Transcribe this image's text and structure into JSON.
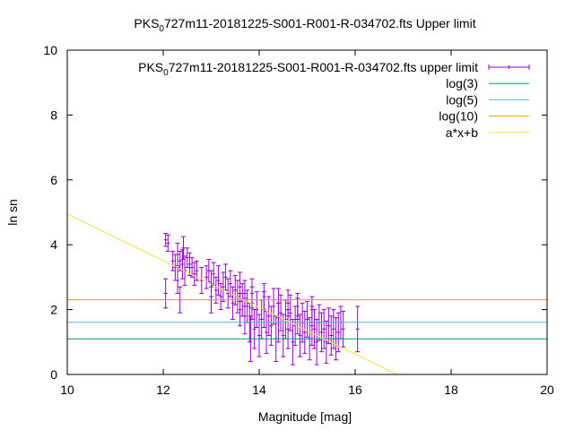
{
  "chart_data": {
    "type": "scatter",
    "title_parts": {
      "pre": "PKS",
      "sub": "0",
      "post": "727m11-20181225-S001-R001-R-034702.fts Upper limit"
    },
    "xlabel": "Magnitude [mag]",
    "ylabel": "ln sn",
    "xlim": [
      10,
      20
    ],
    "ylim": [
      0,
      10
    ],
    "xticks": [
      10,
      12,
      14,
      16,
      18,
      20
    ],
    "yticks": [
      0,
      2,
      4,
      6,
      8,
      10
    ],
    "grid": false,
    "legend_position": "top-right",
    "series": [
      {
        "kind": "errorbars",
        "name_parts": {
          "pre": "PKS",
          "sub": "0",
          "post": "727m11-20181225-S001-R001-R-034702.fts upper limit"
        },
        "color": "#9400d3",
        "points": [
          [
            12.05,
            4.15,
            0.2
          ],
          [
            12.1,
            4.05,
            0.25
          ],
          [
            12.05,
            2.5,
            0.45
          ],
          [
            12.2,
            3.5,
            0.3
          ],
          [
            12.25,
            3.3,
            0.4
          ],
          [
            12.3,
            3.7,
            0.35
          ],
          [
            12.35,
            3.5,
            0.3
          ],
          [
            12.4,
            3.4,
            0.45
          ],
          [
            12.42,
            3.9,
            0.35
          ],
          [
            12.45,
            3.2,
            0.45
          ],
          [
            12.5,
            3.6,
            0.3
          ],
          [
            12.55,
            3.4,
            0.35
          ],
          [
            12.6,
            3.3,
            0.3
          ],
          [
            12.65,
            3.1,
            0.35
          ],
          [
            12.7,
            3.2,
            0.3
          ],
          [
            12.35,
            2.3,
            0.4
          ],
          [
            12.3,
            2.9,
            0.4
          ],
          [
            12.8,
            2.9,
            0.4
          ],
          [
            12.9,
            3.0,
            0.35
          ],
          [
            13.0,
            2.8,
            0.4
          ],
          [
            13.05,
            3.1,
            0.35
          ],
          [
            13.1,
            2.6,
            0.4
          ],
          [
            13.15,
            2.9,
            0.45
          ],
          [
            13.2,
            2.4,
            0.4
          ],
          [
            13.25,
            2.7,
            0.45
          ],
          [
            13.3,
            3.0,
            0.4
          ],
          [
            13.35,
            2.5,
            0.45
          ],
          [
            13.4,
            2.8,
            0.4
          ],
          [
            13.45,
            2.2,
            0.5
          ],
          [
            13.5,
            2.6,
            0.45
          ],
          [
            13.55,
            2.4,
            0.5
          ],
          [
            13.6,
            2.0,
            0.5
          ],
          [
            13.65,
            2.3,
            0.5
          ],
          [
            13.7,
            1.8,
            0.55
          ],
          [
            13.75,
            2.1,
            0.5
          ],
          [
            13.8,
            1.6,
            0.6
          ],
          [
            13.82,
            1.1,
            0.7
          ],
          [
            13.85,
            2.2,
            0.5
          ],
          [
            13.9,
            1.4,
            0.6
          ],
          [
            13.95,
            2.0,
            0.55
          ],
          [
            14.0,
            1.2,
            0.65
          ],
          [
            14.05,
            1.7,
            0.6
          ],
          [
            14.1,
            2.0,
            0.55
          ],
          [
            14.15,
            1.3,
            0.65
          ],
          [
            14.2,
            1.8,
            0.6
          ],
          [
            14.25,
            1.5,
            0.6
          ],
          [
            14.3,
            2.1,
            0.55
          ],
          [
            14.35,
            1.1,
            0.7
          ],
          [
            14.4,
            1.6,
            0.6
          ],
          [
            14.45,
            1.9,
            0.55
          ],
          [
            14.5,
            1.2,
            0.65
          ],
          [
            14.55,
            1.7,
            0.6
          ],
          [
            14.6,
            1.4,
            0.6
          ],
          [
            14.65,
            1.9,
            0.55
          ],
          [
            14.7,
            1.0,
            0.7
          ],
          [
            14.75,
            1.5,
            0.6
          ],
          [
            14.8,
            1.8,
            0.55
          ],
          [
            14.85,
            1.2,
            0.65
          ],
          [
            14.9,
            1.6,
            0.6
          ],
          [
            14.95,
            1.3,
            0.65
          ],
          [
            15.0,
            1.7,
            0.55
          ],
          [
            15.05,
            1.1,
            0.65
          ],
          [
            15.1,
            1.5,
            0.6
          ],
          [
            15.15,
            1.4,
            0.6
          ],
          [
            15.2,
            1.0,
            0.7
          ],
          [
            15.25,
            1.6,
            0.55
          ],
          [
            15.3,
            1.3,
            0.6
          ],
          [
            15.35,
            1.4,
            0.6
          ],
          [
            15.4,
            1.0,
            0.65
          ],
          [
            15.45,
            1.5,
            0.55
          ],
          [
            15.5,
            1.2,
            0.6
          ],
          [
            15.55,
            1.4,
            0.6
          ],
          [
            15.6,
            1.1,
            0.65
          ],
          [
            15.65,
            1.3,
            0.6
          ],
          [
            15.7,
            1.6,
            0.5
          ],
          [
            15.75,
            1.4,
            0.55
          ],
          [
            16.05,
            1.4,
            0.7
          ],
          [
            13.0,
            2.3,
            0.4
          ],
          [
            12.95,
            3.2,
            0.35
          ],
          [
            13.85,
            2.5,
            0.45
          ],
          [
            14.1,
            2.4,
            0.4
          ],
          [
            14.4,
            2.2,
            0.45
          ],
          [
            14.6,
            2.2,
            0.4
          ],
          [
            14.8,
            2.1,
            0.4
          ],
          [
            15.1,
            2.0,
            0.4
          ],
          [
            13.6,
            2.7,
            0.45
          ],
          [
            13.7,
            2.5,
            0.4
          ]
        ]
      },
      {
        "kind": "hline",
        "name": "log(3)",
        "color": "#009e73",
        "value": 1.0986
      },
      {
        "kind": "hline",
        "name": "log(5)",
        "color": "#56b4e9",
        "value": 1.6094
      },
      {
        "kind": "hline",
        "name": "log(10)",
        "color": "#e69f00",
        "value": 2.3026
      },
      {
        "kind": "line",
        "name": "a*x+b",
        "color": "#f0e442",
        "slope": -0.72,
        "intercept": 12.15
      }
    ]
  }
}
